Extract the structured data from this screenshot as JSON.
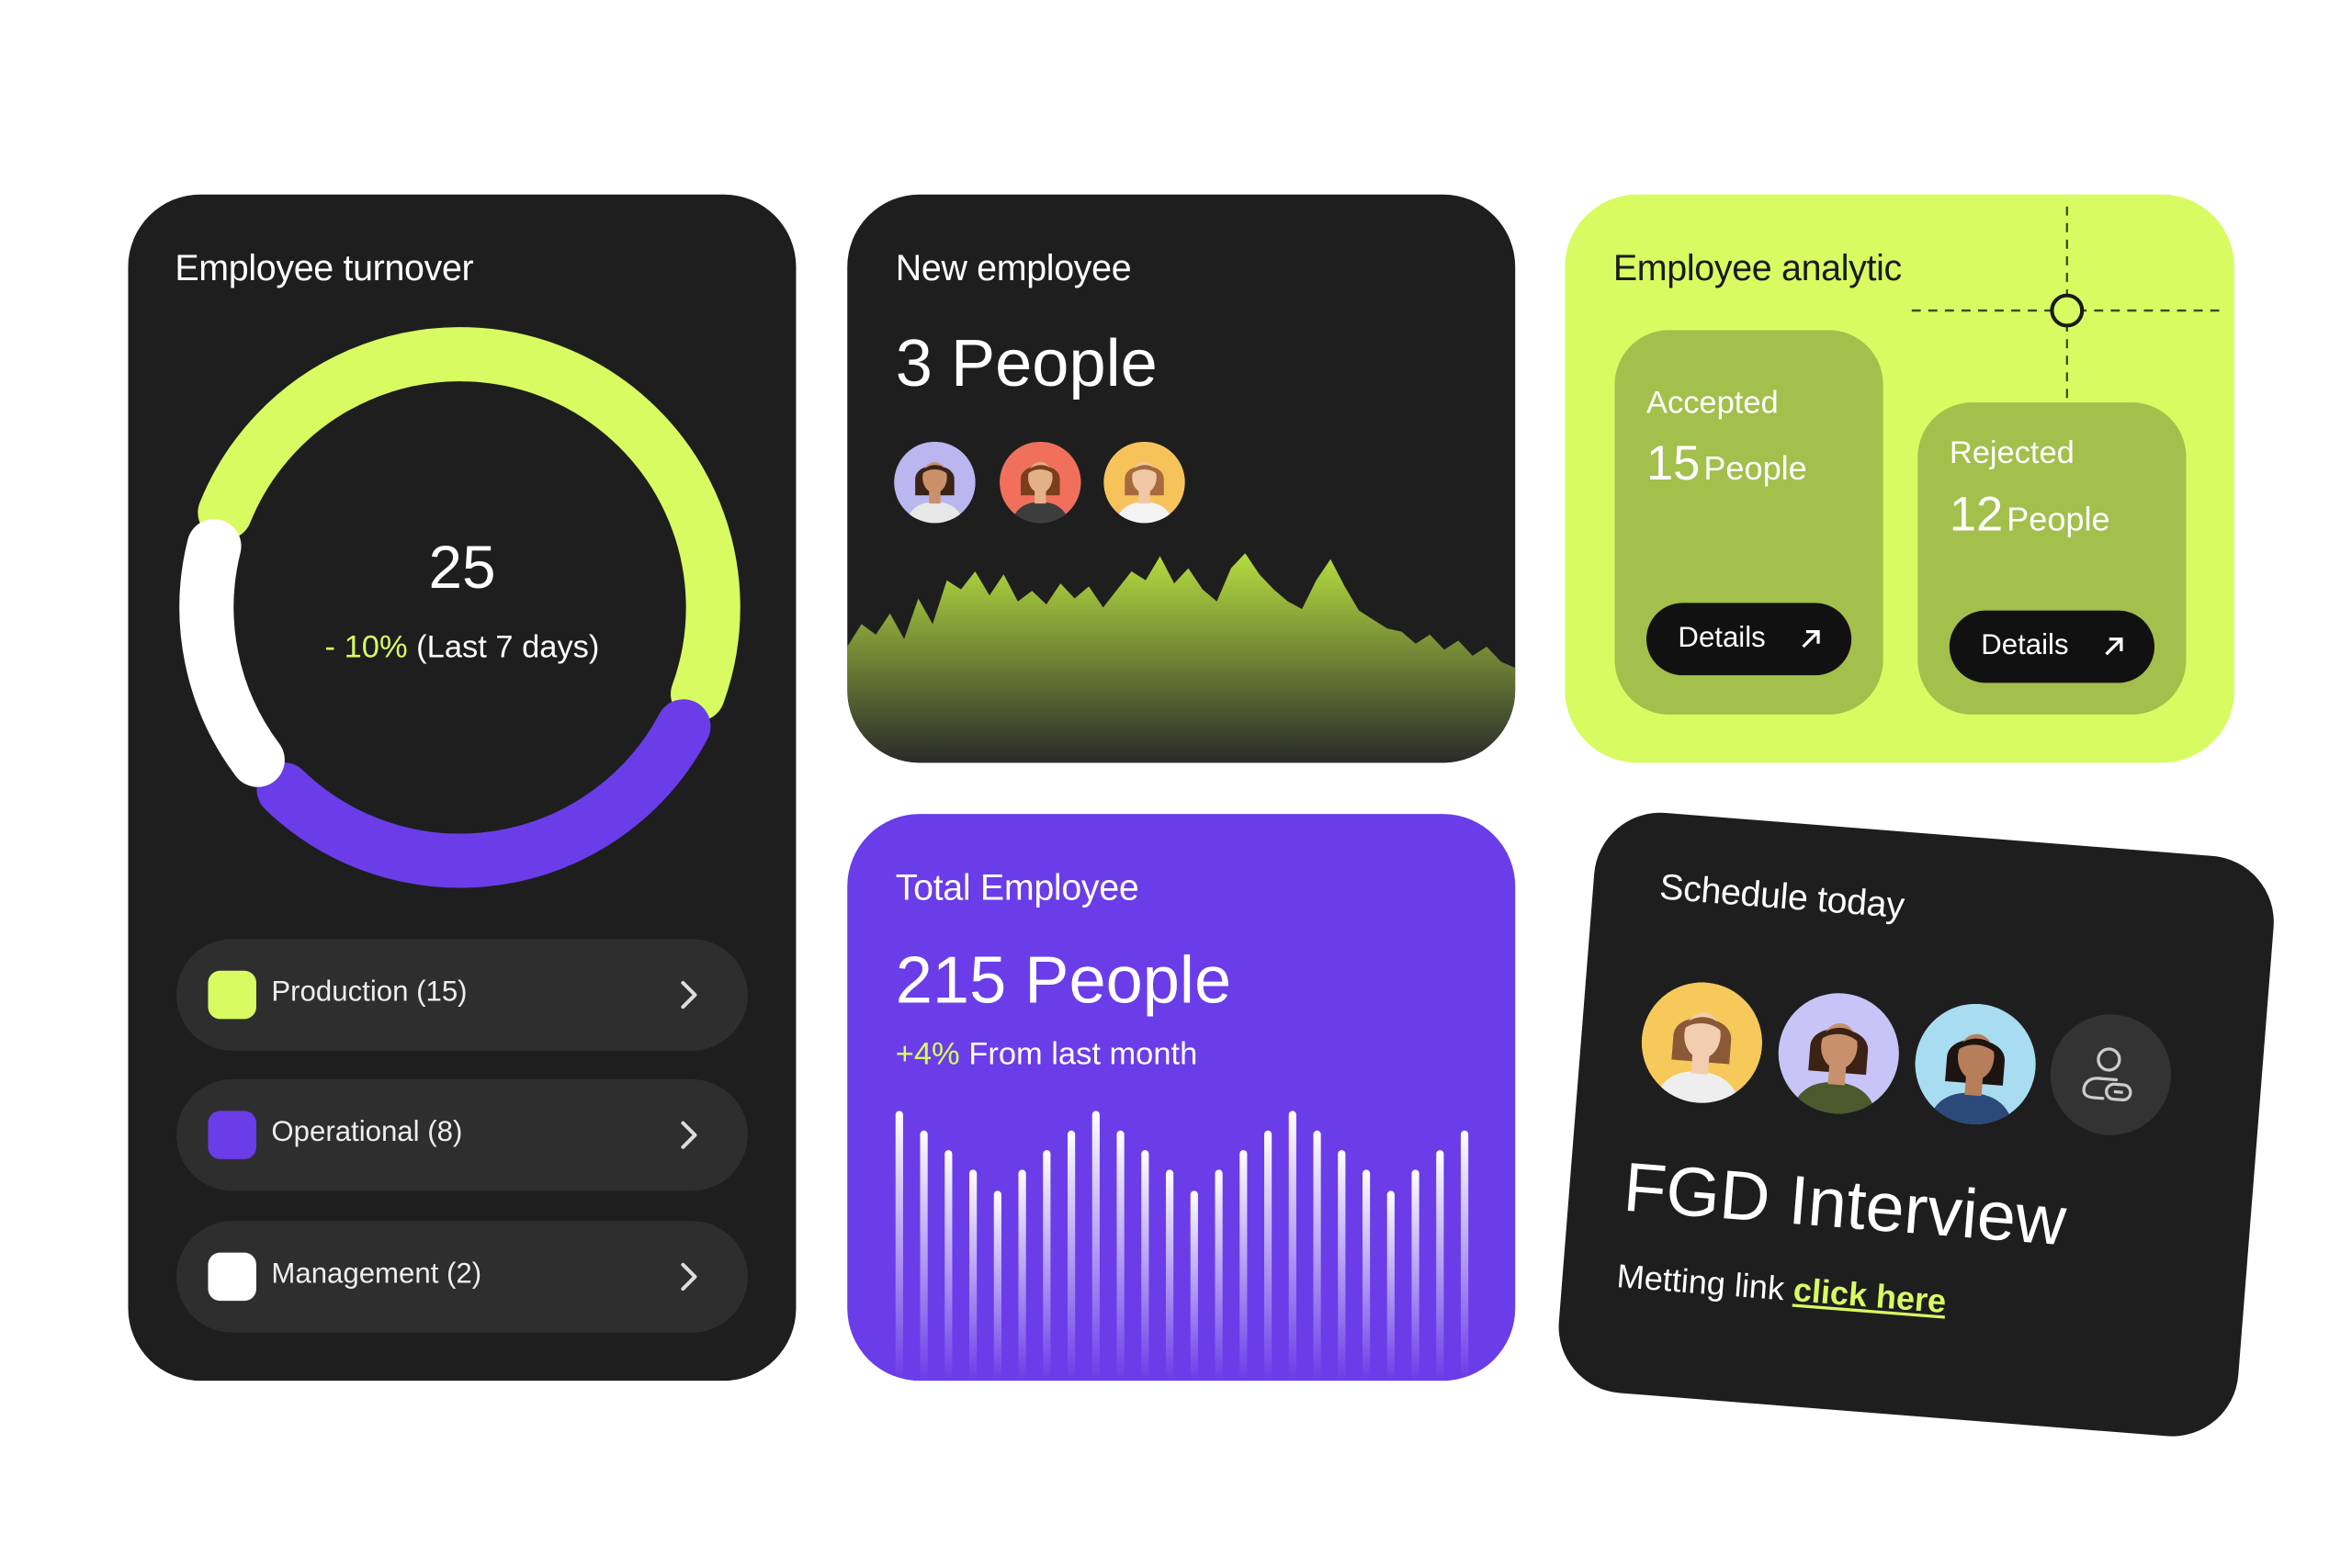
{
  "turnover": {
    "title": "Employee turnover",
    "total": "25",
    "change": "- 10%",
    "period": "(Last 7 days)",
    "legend": [
      {
        "label": "Production (15)",
        "color": "#d8fb62"
      },
      {
        "label": "Operational (8)",
        "color": "#6a3de8"
      },
      {
        "label": "Management (2)",
        "color": "#ffffff"
      }
    ]
  },
  "new_employee": {
    "title": "New employee",
    "count": "3 People",
    "avatars": [
      {
        "bg": "#b9b6f0",
        "skin": "#c9906a",
        "hair": "#3a2418",
        "shirt": "#e8e8e8"
      },
      {
        "bg": "#f0705c",
        "skin": "#e4b08a",
        "hair": "#7a3e1c",
        "shirt": "#3d3d3d"
      },
      {
        "bg": "#f6c35a",
        "skin": "#f1c7a6",
        "hair": "#a66a3c",
        "shirt": "#f3f3f3"
      }
    ]
  },
  "analytic": {
    "title": "Employee analytic",
    "accepted": {
      "label": "Accepted",
      "number": "15",
      "unit": "People",
      "button": "Details"
    },
    "rejected": {
      "label": "Rejected",
      "number": "12",
      "unit": "People",
      "button": "Details"
    }
  },
  "total_employee": {
    "title": "Total Employee",
    "count": "215 People",
    "change": "+4%",
    "change_label": "From last month"
  },
  "schedule": {
    "title": "Schedule today",
    "avatars": [
      {
        "bg": "#f7c85a",
        "skin": "#f2cdb0",
        "hair": "#8a5a36",
        "shirt": "#eeeeee"
      },
      {
        "bg": "#c8c4f7",
        "skin": "#c8906c",
        "hair": "#3b2214",
        "shirt": "#4a5a2c"
      },
      {
        "bg": "#a8dcf0",
        "skin": "#b67e5a",
        "hair": "#1c1410",
        "shirt": "#2b4a7a"
      }
    ],
    "event": "FGD Interview",
    "link_label": "Metting link",
    "link_text": "click here"
  },
  "colors": {
    "lime": "#d8fb62",
    "purple": "#6a3de8",
    "dark": "#1e1e1e",
    "olive": "#a3bf4c"
  }
}
